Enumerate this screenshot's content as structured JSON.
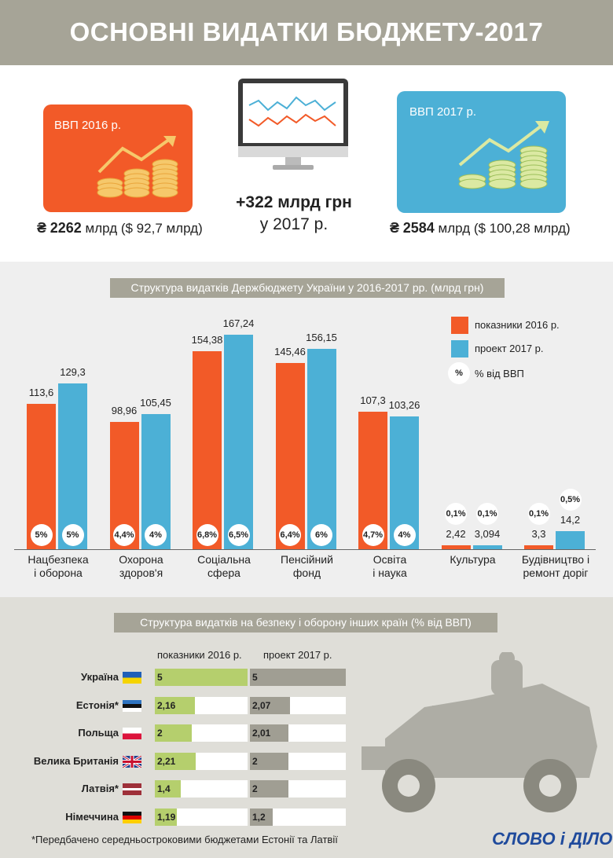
{
  "title": "ОСНОВНІ ВИДАТКИ БЮДЖЕТУ-2017",
  "colors": {
    "orange": "#f25a28",
    "blue": "#4cb0d6",
    "grey": "#a6a497",
    "green": "#b5cf6d",
    "dark_grey": "#a09e93"
  },
  "gdp2016": {
    "label": "ВВП 2016 р.",
    "currency": "₴",
    "amount": "2262",
    "rest": "млрд ($ 92,7 млрд)"
  },
  "gdp2017": {
    "label": "ВВП 2017 р.",
    "currency": "₴",
    "amount": "2584",
    "rest": "млрд ($ 100,28 млрд)"
  },
  "growth": {
    "line1": "+322 млрд грн",
    "line2": "у 2017 р."
  },
  "chart_title": "Структура видатків Держбюджету України у 2016-2017 рр. (млрд грн)",
  "legend": {
    "s2016": "показники 2016 р.",
    "s2017": "проект 2017 р.",
    "pct_symbol": "%",
    "pct_text": "% від ВВП"
  },
  "chart_data": {
    "type": "bar",
    "title": "Структура видатків Держбюджету України у 2016-2017 рр. (млрд грн)",
    "categories": [
      [
        "Нацбезпека",
        "і оборона"
      ],
      [
        "Охорона",
        "здоров'я"
      ],
      [
        "Соціальна",
        "сфера"
      ],
      [
        "Пенсійний",
        "фонд"
      ],
      [
        "Освіта",
        "і наука"
      ],
      [
        "Культура",
        ""
      ],
      [
        "Будівництво і",
        "ремонт доріг"
      ]
    ],
    "series": [
      {
        "name": "показники 2016 р.",
        "values": [
          113.6,
          98.96,
          154.38,
          145.46,
          107.3,
          2.42,
          3.3
        ],
        "labels": [
          "113,6",
          "98,96",
          "154,38",
          "145,46",
          "107,3",
          "2,42",
          "3,3"
        ],
        "pct": [
          "5%",
          "4,4%",
          "6,8%",
          "6,4%",
          "4,7%",
          "0,1%",
          "0,1%"
        ]
      },
      {
        "name": "проект 2017 р.",
        "values": [
          129.3,
          105.45,
          167.24,
          156.15,
          103.26,
          3.094,
          14.2
        ],
        "labels": [
          "129,3",
          "105,45",
          "167,24",
          "156,15",
          "103,26",
          "3,094",
          "14,2"
        ],
        "pct": [
          "5%",
          "4%",
          "6,5%",
          "6%",
          "4%",
          "0,1%",
          "0,5%"
        ]
      }
    ],
    "ylim": [
      0,
      167.24
    ]
  },
  "defense": {
    "title": "Структура видатків на безпеку і оборону інших країн (% від ВВП)",
    "col2016": "показники 2016 р.",
    "col2017": "проект 2017 р.",
    "max": 5,
    "rows": [
      {
        "country": "Україна",
        "v2016": 5,
        "l2016": "5",
        "v2017": 5,
        "l2017": "5",
        "flag": "ukraine-flag"
      },
      {
        "country": "Естонія*",
        "v2016": 2.16,
        "l2016": "2,16",
        "v2017": 2.07,
        "l2017": "2,07",
        "flag": "estonia-flag"
      },
      {
        "country": "Польща",
        "v2016": 2,
        "l2016": "2",
        "v2017": 2.01,
        "l2017": "2,01",
        "flag": "poland-flag"
      },
      {
        "country": "Велика Британія",
        "v2016": 2.21,
        "l2016": "2,21",
        "v2017": 2,
        "l2017": "2",
        "flag": "uk-flag"
      },
      {
        "country": "Латвія*",
        "v2016": 1.4,
        "l2016": "1,4",
        "v2017": 2,
        "l2017": "2",
        "flag": "latvia-flag"
      },
      {
        "country": "Німеччина",
        "v2016": 1.19,
        "l2016": "1,19",
        "v2017": 1.2,
        "l2017": "1,2",
        "flag": "germany-flag"
      }
    ],
    "footnote": "*Передбачено середньостроковими бюджетами Естонії та Латвії"
  },
  "logo": {
    "part1": "СЛОВО",
    "part2": "і",
    "part3": "ДІЛО"
  }
}
